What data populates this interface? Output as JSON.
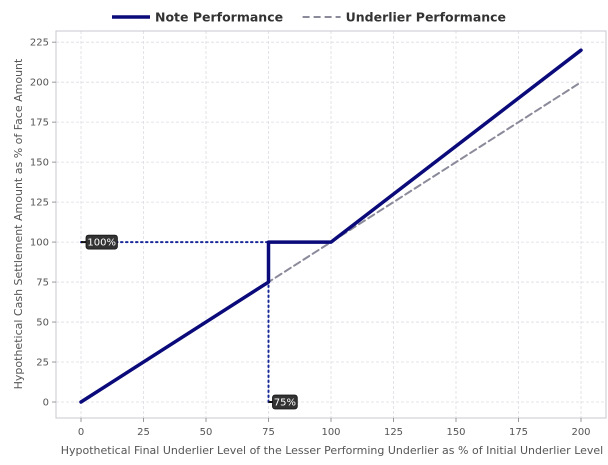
{
  "chart_data": {
    "type": "line",
    "xlabel": "Hypothetical Final Underlier Level of the Lesser Performing Underlier as % of Initial Underlier Level",
    "ylabel": "Hypothetical Cash Settlement Amount as % of Face Amount",
    "xlim": [
      -10,
      210
    ],
    "ylim": [
      -10,
      232
    ],
    "x_ticks": [
      0,
      25,
      50,
      75,
      100,
      125,
      150,
      175,
      200
    ],
    "y_ticks": [
      0,
      25,
      50,
      75,
      100,
      125,
      150,
      175,
      200,
      225
    ],
    "grid": true,
    "legend_position": "top-center",
    "series": [
      {
        "name": "Note Performance",
        "color": "#0a0a7a",
        "style": "solid",
        "points": [
          [
            0,
            0
          ],
          [
            75,
            75
          ],
          [
            75,
            100
          ],
          [
            100,
            100
          ],
          [
            200,
            220
          ]
        ]
      },
      {
        "name": "Underlier Performance",
        "color": "#8a8a9a",
        "style": "dashed",
        "points": [
          [
            0,
            0
          ],
          [
            200,
            200
          ]
        ]
      }
    ],
    "annotations": [
      {
        "text": "100%",
        "x": 0,
        "y": 100,
        "guide": "horizontal",
        "guide_to_x": 75,
        "color": "#1a2a99"
      },
      {
        "text": "75%",
        "x": 75,
        "y": 0,
        "guide": "vertical",
        "guide_to_y": 100,
        "color": "#1a2a99"
      }
    ]
  }
}
